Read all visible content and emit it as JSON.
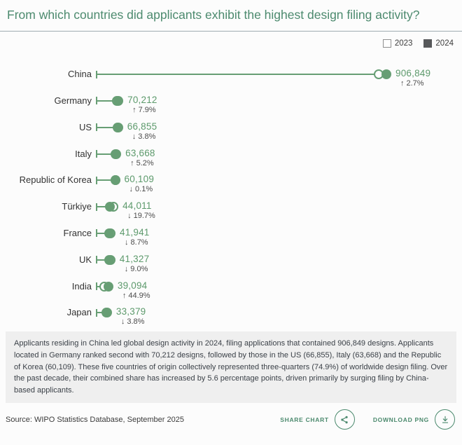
{
  "header": {
    "title": "From which countries did applicants exhibit the highest design filing activity?"
  },
  "legend": {
    "year_2023": "2023",
    "year_2024": "2024"
  },
  "colors": {
    "chart_green": "#679e74",
    "title_green": "#4c8a6e",
    "value_green": "#5d9a6c",
    "legend_filled": "#57585a",
    "footer_bg": "#efefef"
  },
  "chart_data": {
    "type": "bar",
    "subtype": "dumbbell-lollipop-horizontal",
    "title": "From which countries did applicants exhibit the highest design filing activity?",
    "xlabel": "",
    "ylabel": "",
    "x_axis_visible": false,
    "grid": false,
    "legend_position": "top-right",
    "series_names": [
      "2023",
      "2024"
    ],
    "x_max_value": 906849,
    "categories": [
      "China",
      "Germany",
      "US",
      "Italy",
      "Republic of Korea",
      "Türkiye",
      "France",
      "UK",
      "India",
      "Japan"
    ],
    "rows": [
      {
        "country": "China",
        "value_2024": 906849,
        "value_label": "906,849",
        "change_pct": "2.7%",
        "change_pct_num": 2.7,
        "direction": "up"
      },
      {
        "country": "Germany",
        "value_2024": 70212,
        "value_label": "70,212",
        "change_pct": "7.9%",
        "change_pct_num": 7.9,
        "direction": "up"
      },
      {
        "country": "US",
        "value_2024": 66855,
        "value_label": "66,855",
        "change_pct": "3.8%",
        "change_pct_num": 3.8,
        "direction": "down"
      },
      {
        "country": "Italy",
        "value_2024": 63668,
        "value_label": "63,668",
        "change_pct": "5.2%",
        "change_pct_num": 5.2,
        "direction": "up"
      },
      {
        "country": "Republic of Korea",
        "value_2024": 60109,
        "value_label": "60,109",
        "change_pct": "0.1%",
        "change_pct_num": 0.1,
        "direction": "down"
      },
      {
        "country": "Türkiye",
        "value_2024": 44011,
        "value_label": "44,011",
        "change_pct": "19.7%",
        "change_pct_num": 19.7,
        "direction": "down"
      },
      {
        "country": "France",
        "value_2024": 41941,
        "value_label": "41,941",
        "change_pct": "8.7%",
        "change_pct_num": 8.7,
        "direction": "down"
      },
      {
        "country": "UK",
        "value_2024": 41327,
        "value_label": "41,327",
        "change_pct": "9.0%",
        "change_pct_num": 9.0,
        "direction": "down"
      },
      {
        "country": "India",
        "value_2024": 39094,
        "value_label": "39,094",
        "change_pct": "44.9%",
        "change_pct_num": 44.9,
        "direction": "up"
      },
      {
        "country": "Japan",
        "value_2024": 33379,
        "value_label": "33,379",
        "change_pct": "3.8%",
        "change_pct_num": 3.8,
        "direction": "down"
      }
    ],
    "arrow_up": "↑",
    "arrow_down": "↓"
  },
  "footer": {
    "description": "Applicants residing in China led global design activity in 2024, filing applications that contained 906,849 designs. Applicants located in Germany ranked second with 70,212 designs, followed by those in the US (66,855), Italy (63,668) and the Republic of Korea (60,109). These five countries of origin collectively represented three-quarters (74.9%) of worldwide design filing. Over the past decade, their combined share has increased by 5.6 percentage points, driven primarily by surging filing by China-based applicants.",
    "source": "Source: WIPO Statistics Database, September 2025"
  },
  "actions": {
    "share_label": "SHARE CHART",
    "download_label": "DOWNLOAD PNG"
  }
}
